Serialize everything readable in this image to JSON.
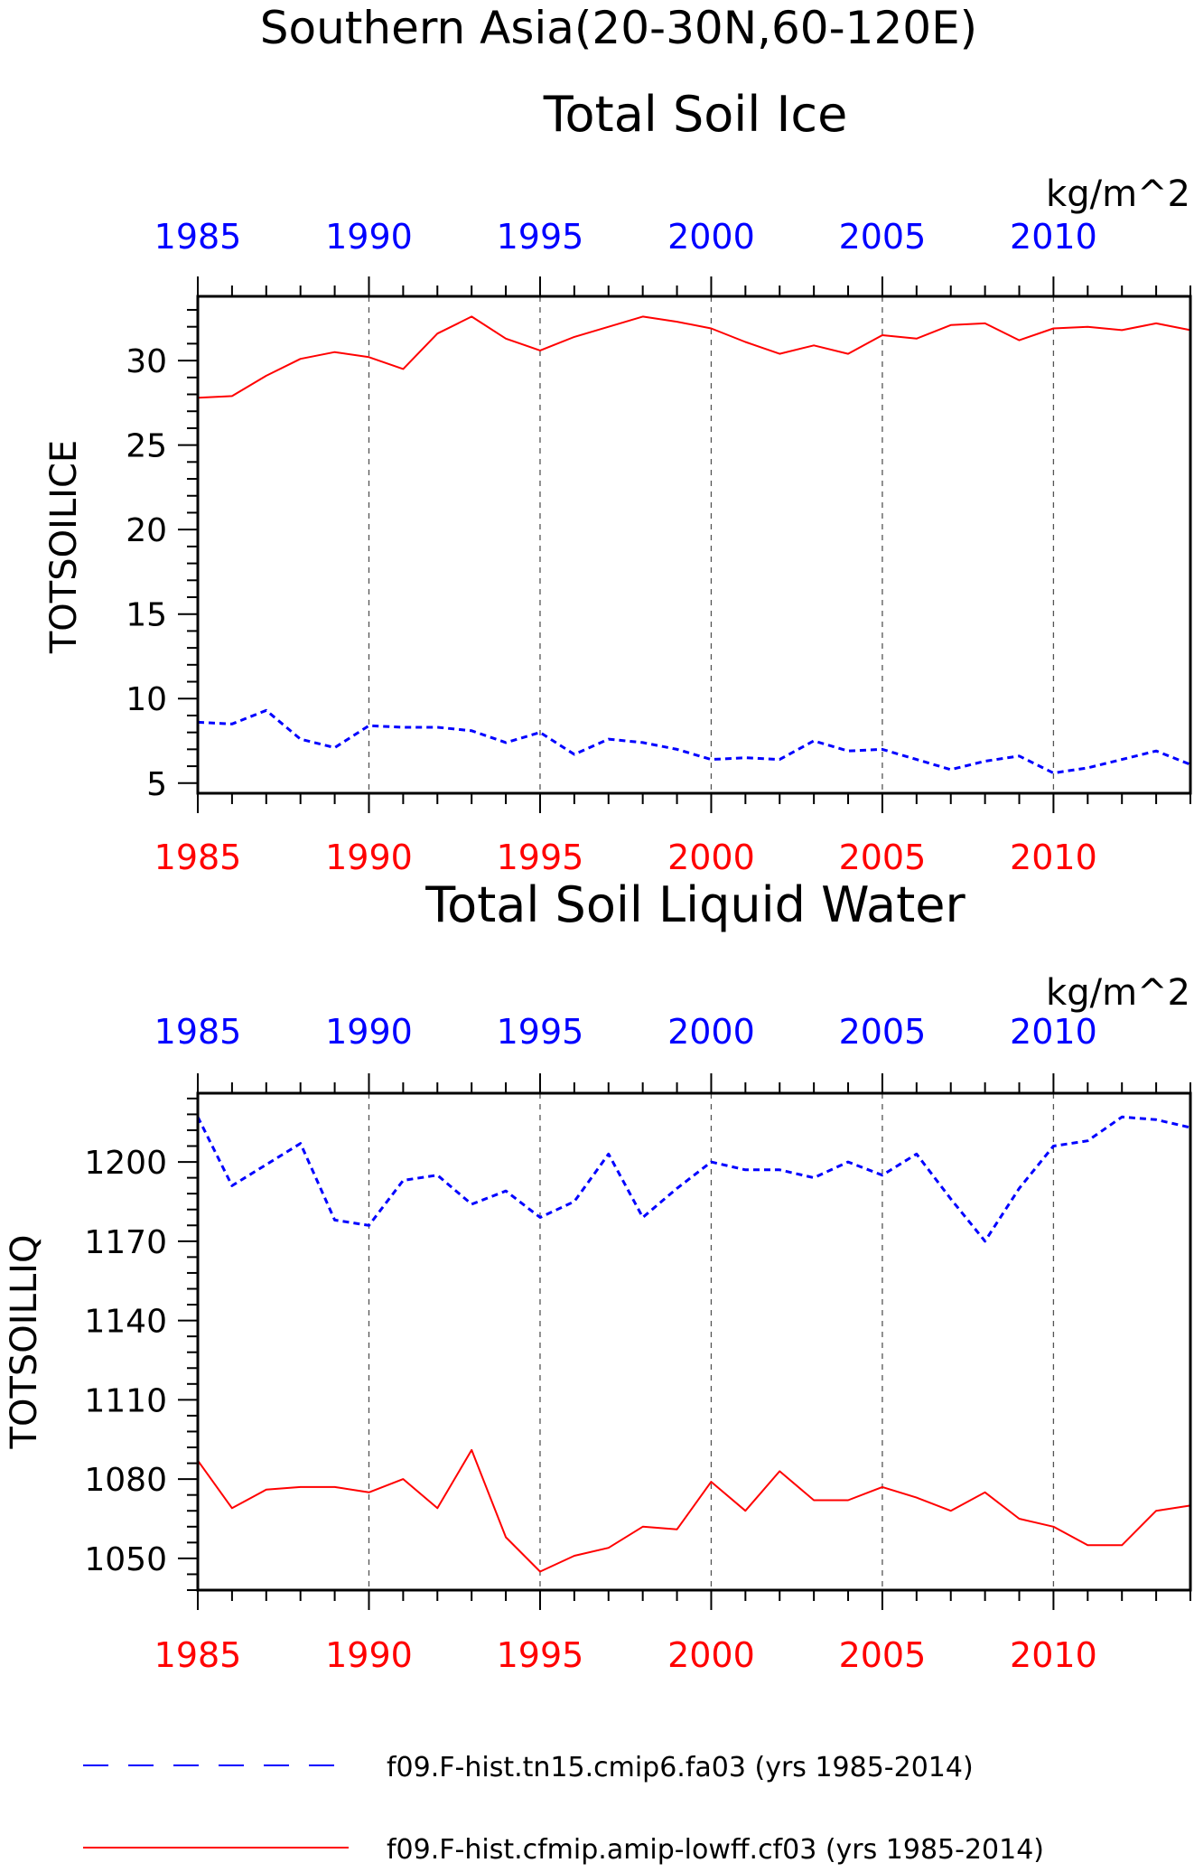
{
  "figure": {
    "title_line1": "Southern Asia(20-30N,60-120E)",
    "colors": {
      "blue": "#0000ff",
      "red": "#ff0000",
      "axis": "#000000",
      "grid": "#555555"
    }
  },
  "legend": {
    "position": "bottom",
    "entries": [
      {
        "label": "f09.F-hist.tn15.cmip6.fa03 (yrs 1985-2014)",
        "color": "#0000ff",
        "style": "dashed"
      },
      {
        "label": "f09.F-hist.cfmip.amip-lowff.cf03 (yrs 1985-2014)",
        "color": "#ff0000",
        "style": "solid"
      }
    ]
  },
  "chart_data": [
    {
      "type": "line",
      "title": "Total Soil Ice",
      "units": "kg/m^2",
      "ylabel": "TOTSOILICE",
      "xlim": [
        1985,
        2014
      ],
      "ylim": [
        4.4,
        33.8
      ],
      "xticks": [
        1985,
        1990,
        1995,
        2000,
        2005,
        2010
      ],
      "yticks": [
        5,
        10,
        15,
        20,
        25,
        30
      ],
      "top_xtick_labels": [
        "1985",
        "1990",
        "1995",
        "2000",
        "2005",
        "2010"
      ],
      "bottom_xtick_labels": [
        "1985",
        "1990",
        "1995",
        "2000",
        "2005",
        "2010"
      ],
      "ytick_labels": [
        "5",
        "10",
        "15",
        "20",
        "25",
        "30"
      ],
      "grid": "vertical dashed at major x ticks",
      "x": [
        1985,
        1986,
        1987,
        1988,
        1989,
        1990,
        1991,
        1992,
        1993,
        1994,
        1995,
        1996,
        1997,
        1998,
        1999,
        2000,
        2001,
        2002,
        2003,
        2004,
        2005,
        2006,
        2007,
        2008,
        2009,
        2010,
        2011,
        2012,
        2013,
        2014
      ],
      "series": [
        {
          "name": "f09.F-hist.tn15.cmip6.fa03",
          "color": "#0000ff",
          "style": "dashed",
          "values": [
            8.6,
            8.5,
            9.3,
            7.6,
            7.1,
            8.4,
            8.3,
            8.3,
            8.1,
            7.4,
            8.0,
            6.7,
            7.6,
            7.4,
            7.0,
            6.4,
            6.5,
            6.4,
            7.5,
            6.9,
            7.0,
            6.4,
            5.8,
            6.3,
            6.6,
            5.6,
            5.9,
            6.4,
            6.9,
            6.1
          ]
        },
        {
          "name": "f09.F-hist.cfmip.amip-lowff.cf03",
          "color": "#ff0000",
          "style": "solid",
          "values": [
            27.8,
            27.9,
            29.1,
            30.1,
            30.5,
            30.2,
            29.5,
            31.6,
            32.6,
            31.3,
            30.6,
            31.4,
            32.0,
            32.6,
            32.3,
            31.9,
            31.1,
            30.4,
            30.9,
            30.4,
            31.5,
            31.3,
            32.1,
            32.2,
            31.2,
            31.9,
            32.0,
            31.8,
            32.2,
            31.8
          ]
        }
      ]
    },
    {
      "type": "line",
      "title": "Total Soil Liquid Water",
      "units": "kg/m^2",
      "ylabel": "TOTSOILLIQ",
      "xlim": [
        1985,
        2014
      ],
      "ylim": [
        1038,
        1226
      ],
      "xticks": [
        1985,
        1990,
        1995,
        2000,
        2005,
        2010
      ],
      "yticks": [
        1050,
        1080,
        1110,
        1140,
        1170,
        1200
      ],
      "top_xtick_labels": [
        "1985",
        "1990",
        "1995",
        "2000",
        "2005",
        "2010"
      ],
      "bottom_xtick_labels": [
        "1985",
        "1990",
        "1995",
        "2000",
        "2005",
        "2010"
      ],
      "ytick_labels": [
        "1050",
        "1080",
        "1110",
        "1140",
        "1170",
        "1200"
      ],
      "grid": "vertical dashed at major x ticks",
      "x": [
        1985,
        1986,
        1987,
        1988,
        1989,
        1990,
        1991,
        1992,
        1993,
        1994,
        1995,
        1996,
        1997,
        1998,
        1999,
        2000,
        2001,
        2002,
        2003,
        2004,
        2005,
        2006,
        2007,
        2008,
        2009,
        2010,
        2011,
        2012,
        2013,
        2014
      ],
      "series": [
        {
          "name": "f09.F-hist.tn15.cmip6.fa03",
          "color": "#0000ff",
          "style": "dashed",
          "values": [
            1217,
            1191,
            1199,
            1207,
            1178,
            1176,
            1193,
            1195,
            1184,
            1189,
            1179,
            1185,
            1203,
            1179,
            1190,
            1200,
            1197,
            1197,
            1194,
            1200,
            1195,
            1203,
            1186,
            1170,
            1190,
            1206,
            1208,
            1217,
            1216,
            1213
          ]
        },
        {
          "name": "f09.F-hist.cfmip.amip-lowff.cf03",
          "color": "#ff0000",
          "style": "solid",
          "values": [
            1087,
            1069,
            1076,
            1077,
            1077,
            1075,
            1080,
            1069,
            1091,
            1058,
            1045,
            1051,
            1054,
            1062,
            1061,
            1079,
            1068,
            1083,
            1072,
            1072,
            1077,
            1073,
            1068,
            1075,
            1065,
            1062,
            1055,
            1055,
            1068,
            1070
          ]
        }
      ]
    }
  ]
}
